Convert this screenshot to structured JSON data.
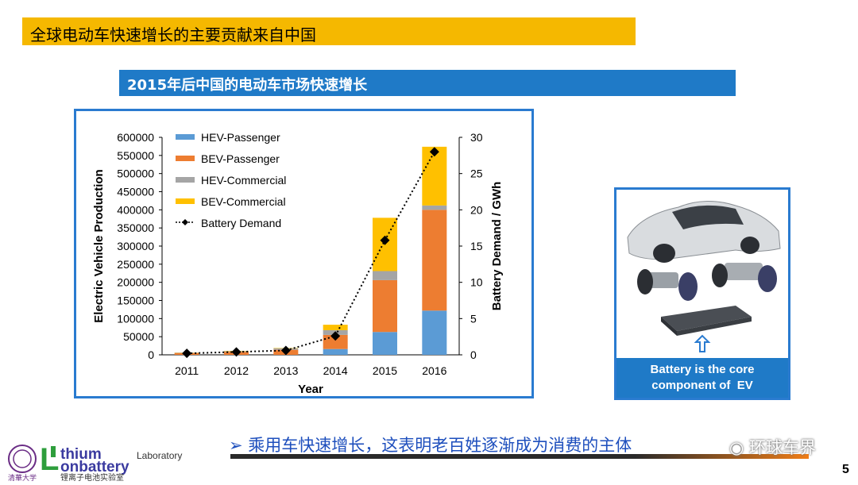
{
  "slide": {
    "title": "全球电动车快速增长的主要贡献来自中国",
    "subtitle": "2015年后中国的电动车市场快速增长",
    "bullet": "乘用车快速增长，这表明老百姓逐渐成为消费的主体",
    "bullet_marker": "➢",
    "page_number": "5",
    "watermark": "环球车界"
  },
  "ev_panel": {
    "caption_line1": "Battery is the core",
    "caption_line2": "component of  EV"
  },
  "logo": {
    "main_l": "L",
    "line1": "thium",
    "line1_suffix": "Laboratory",
    "line2": "onbattery",
    "chinese": "锂离子电池实验室",
    "uni": "清華大学"
  },
  "colors": {
    "title_bg": "#f5b800",
    "subtitle_bg": "#1f7ac7",
    "frame": "#2a7bd0",
    "hev_passenger": "#5b9bd5",
    "bev_passenger": "#ed7d31",
    "hev_commercial": "#a5a5a5",
    "bev_commercial": "#ffc000"
  },
  "chart_data": {
    "type": "bar",
    "stacked": true,
    "categories": [
      "2011",
      "2012",
      "2013",
      "2014",
      "2015",
      "2016"
    ],
    "xlabel": "Year",
    "ylabel": "Electric Vehicle Production",
    "y2label": "Battery Demand / GWh",
    "ylim": [
      0,
      600000
    ],
    "y2lim": [
      0,
      30
    ],
    "yticks": [
      "0",
      "50000",
      "100000",
      "150000",
      "200000",
      "250000",
      "300000",
      "350000",
      "400000",
      "450000",
      "500000",
      "550000",
      "600000"
    ],
    "y2ticks": [
      "0",
      "5",
      "10",
      "15",
      "20",
      "25",
      "30"
    ],
    "legend_position": "top-left",
    "series": [
      {
        "name": "HEV-Passenger",
        "color": "#5b9bd5",
        "values": [
          0,
          0,
          0,
          16000,
          63000,
          122000
        ]
      },
      {
        "name": "BEV-Passenger",
        "color": "#ed7d31",
        "values": [
          5000,
          8000,
          14000,
          39000,
          143000,
          278000
        ]
      },
      {
        "name": "HEV-Commercial",
        "color": "#a5a5a5",
        "values": [
          1000,
          2000,
          4000,
          13000,
          25000,
          12000
        ]
      },
      {
        "name": "BEV-Commercial",
        "color": "#ffc000",
        "values": [
          500,
          1000,
          1000,
          15000,
          147000,
          162000
        ]
      }
    ],
    "line_series": {
      "name": "Battery Demand",
      "axis": "y2",
      "values": [
        0.2,
        0.4,
        0.6,
        2.6,
        15.8,
        28.0
      ]
    }
  }
}
